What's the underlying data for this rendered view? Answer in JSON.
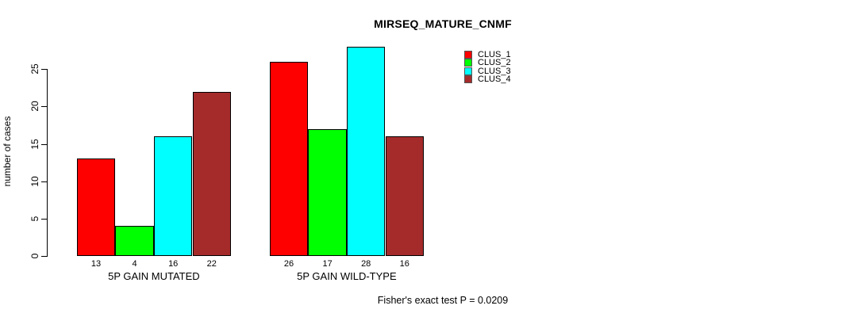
{
  "title": "MIRSEQ_MATURE_CNMF",
  "footer_annotation": "Fisher's exact test P = 0.0209",
  "chart_data": {
    "type": "bar",
    "title": "MIRSEQ_MATURE_CNMF",
    "xlabel": "",
    "ylabel": "number of cases",
    "categories": [
      "5P GAIN MUTATED",
      "5P GAIN WILD-TYPE"
    ],
    "series": [
      {
        "name": "CLUS_1",
        "color": "#ff0000",
        "values": [
          13,
          26
        ]
      },
      {
        "name": "CLUS_2",
        "color": "#00ff00",
        "values": [
          4,
          17
        ]
      },
      {
        "name": "CLUS_3",
        "color": "#00ffff",
        "values": [
          16,
          28
        ]
      },
      {
        "name": "CLUS_4",
        "color": "#a52a2a",
        "values": [
          22,
          16
        ]
      }
    ],
    "yticks": [
      0,
      5,
      10,
      15,
      20,
      25
    ],
    "ylim": [
      0,
      28
    ],
    "grid": false,
    "bar_value_labels_shown": true,
    "legend_position": "top-right",
    "annotation": "Fisher's exact test P = 0.0209",
    "background_color": "#ffffff",
    "axis_color": "#000000"
  }
}
